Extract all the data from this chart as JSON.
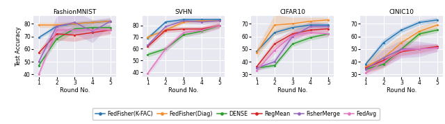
{
  "subplots": [
    "FashionMNIST",
    "SVHN",
    "CIFAR10",
    "CINIC10"
  ],
  "rounds": [
    1,
    2,
    3,
    4,
    5
  ],
  "ylabel": "Test Accuracy",
  "xlabel": "Round No.",
  "methods": [
    "FedFisher(K-FAC)",
    "FedFisher(Diag)",
    "DENSE",
    "RegMean",
    "FisherMerge",
    "FedAvg"
  ],
  "colors": [
    "#2878b5",
    "#f28e2b",
    "#2ca02c",
    "#d62728",
    "#9467bd",
    "#e377c2"
  ],
  "data": {
    "FashionMNIST": {
      "FedFisher(K-FAC)": {
        "mean": [
          69,
          78,
          80,
          81,
          82
        ],
        "std": [
          1.5,
          1.5,
          1.5,
          1.5,
          1.5
        ]
      },
      "FedFisher(Diag)": {
        "mean": [
          79,
          79,
          80,
          81,
          82
        ],
        "std": [
          2.0,
          2.0,
          2.0,
          2.0,
          2.0
        ]
      },
      "DENSE": {
        "mean": [
          47,
          68,
          76,
          77,
          77
        ],
        "std": [
          1.5,
          3.0,
          3.0,
          2.0,
          2.0
        ]
      },
      "RegMean": {
        "mean": [
          57,
          72,
          71,
          73,
          75
        ],
        "std": [
          2.0,
          5.0,
          5.0,
          4.0,
          3.0
        ]
      },
      "FisherMerge": {
        "mean": [
          50,
          78,
          81,
          74,
          82
        ],
        "std": [
          3.0,
          8.0,
          9.0,
          9.0,
          3.0
        ]
      },
      "FedAvg": {
        "mean": [
          40,
          75,
          75,
          75,
          75
        ],
        "std": [
          2.0,
          3.0,
          3.0,
          3.0,
          3.0
        ]
      }
    },
    "SVHN": {
      "FedFisher(K-FAC)": {
        "mean": [
          69,
          83,
          85,
          85,
          85
        ],
        "std": [
          2.0,
          1.5,
          1.5,
          1.5,
          1.5
        ]
      },
      "FedFisher(Diag)": {
        "mean": [
          70,
          76,
          83,
          84,
          84
        ],
        "std": [
          2.0,
          2.0,
          1.5,
          1.5,
          1.5
        ]
      },
      "DENSE": {
        "mean": [
          55,
          60,
          72,
          75,
          80
        ],
        "std": [
          2.0,
          2.0,
          2.0,
          2.0,
          2.0
        ]
      },
      "RegMean": {
        "mean": [
          62,
          76,
          77,
          77,
          80
        ],
        "std": [
          2.0,
          2.0,
          2.0,
          2.0,
          2.0
        ]
      },
      "FisherMerge": {
        "mean": [
          63,
          79,
          84,
          83,
          84
        ],
        "std": [
          2.0,
          2.0,
          2.0,
          2.0,
          2.0
        ]
      },
      "FedAvg": {
        "mean": [
          39,
          60,
          74,
          76,
          80
        ],
        "std": [
          2.0,
          3.0,
          3.0,
          3.0,
          3.0
        ]
      }
    },
    "CIFAR10": {
      "FedFisher(K-FAC)": {
        "mean": [
          48,
          63,
          67,
          69,
          69
        ],
        "std": [
          2.0,
          2.0,
          2.0,
          2.0,
          2.0
        ]
      },
      "FedFisher(Diag)": {
        "mean": [
          47,
          69,
          70,
          72,
          73
        ],
        "std": [
          4.0,
          8.0,
          5.0,
          3.0,
          2.0
        ]
      },
      "DENSE": {
        "mean": [
          35,
          37,
          54,
          59,
          62
        ],
        "std": [
          1.5,
          1.5,
          2.0,
          2.0,
          2.0
        ]
      },
      "RegMean": {
        "mean": [
          36,
          54,
          62,
          65,
          66
        ],
        "std": [
          2.0,
          3.0,
          3.0,
          3.0,
          2.0
        ]
      },
      "FisherMerge": {
        "mean": [
          35,
          40,
          60,
          68,
          68
        ],
        "std": [
          2.0,
          3.0,
          4.0,
          4.0,
          2.0
        ]
      },
      "FedAvg": {
        "mean": [
          33,
          49,
          61,
          63,
          62
        ],
        "std": [
          2.0,
          3.0,
          3.0,
          3.0,
          3.0
        ]
      }
    },
    "CINIC10": {
      "FedFisher(K-FAC)": {
        "mean": [
          38,
          55,
          65,
          71,
          73
        ],
        "std": [
          2.0,
          3.0,
          2.0,
          2.0,
          2.0
        ]
      },
      "FedFisher(Diag)": {
        "mean": [
          36,
          43,
          55,
          64,
          69
        ],
        "std": [
          5.0,
          8.0,
          6.0,
          4.0,
          3.0
        ]
      },
      "DENSE": {
        "mean": [
          34,
          38,
          50,
          62,
          65
        ],
        "std": [
          2.0,
          2.0,
          2.0,
          2.0,
          2.0
        ]
      },
      "RegMean": {
        "mean": [
          35,
          41,
          48,
          50,
          52
        ],
        "std": [
          2.0,
          3.0,
          3.0,
          3.0,
          2.0
        ]
      },
      "FisherMerge": {
        "mean": [
          34,
          43,
          50,
          50,
          51
        ],
        "std": [
          3.0,
          7.0,
          7.0,
          6.0,
          3.0
        ]
      },
      "FedAvg": {
        "mean": [
          31,
          40,
          49,
          50,
          51
        ],
        "std": [
          2.0,
          5.0,
          5.0,
          4.0,
          3.0
        ]
      }
    }
  },
  "ylims": {
    "FashionMNIST": [
      38,
      86
    ],
    "SVHN": [
      36,
      88
    ],
    "CIFAR10": [
      28,
      76
    ],
    "CINIC10": [
      28,
      76
    ]
  },
  "yticks": {
    "FashionMNIST": [
      40,
      50,
      60,
      70,
      80
    ],
    "SVHN": [
      40,
      50,
      60,
      70,
      80
    ],
    "CIFAR10": [
      30,
      40,
      50,
      60,
      70
    ],
    "CINIC10": [
      30,
      40,
      50,
      60,
      70
    ]
  },
  "bg_color": "#e8e8f0",
  "grid_color": "white",
  "fig_facecolor": "white"
}
